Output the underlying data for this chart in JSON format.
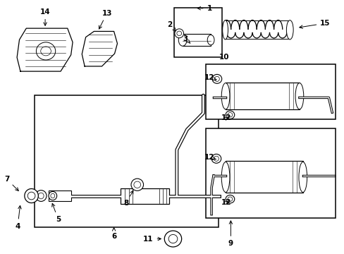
{
  "bg": "#ffffff",
  "lc": "#000000",
  "fig_w": 4.89,
  "fig_h": 3.6,
  "dpi": 100
}
